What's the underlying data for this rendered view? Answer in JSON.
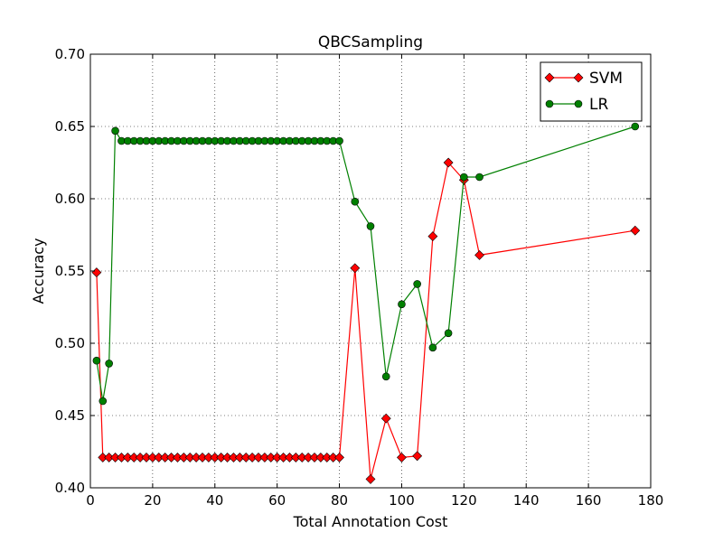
{
  "chart_data": {
    "type": "line",
    "title": "QBCSampling",
    "xlabel": "Total Annotation Cost",
    "ylabel": "Accuracy",
    "xlim": [
      0,
      180
    ],
    "ylim": [
      0.4,
      0.7
    ],
    "x_ticks": [
      0,
      20,
      40,
      60,
      80,
      100,
      120,
      140,
      160,
      180
    ],
    "y_ticks": [
      0.4,
      0.45,
      0.5,
      0.55,
      0.6,
      0.65,
      0.7
    ],
    "x_tick_labels": [
      "0",
      "20",
      "40",
      "60",
      "80",
      "100",
      "120",
      "140",
      "160",
      "180"
    ],
    "y_tick_labels": [
      "0.40",
      "0.45",
      "0.50",
      "0.55",
      "0.60",
      "0.65",
      "0.70"
    ],
    "grid": true,
    "legend_position": "top-right",
    "series": [
      {
        "name": "SVM",
        "color": "#ff0000",
        "marker": "diamond",
        "x": [
          2,
          4,
          6,
          8,
          10,
          12,
          14,
          16,
          18,
          20,
          22,
          24,
          26,
          28,
          30,
          32,
          34,
          36,
          38,
          40,
          42,
          44,
          46,
          48,
          50,
          52,
          54,
          56,
          58,
          60,
          62,
          64,
          66,
          68,
          70,
          72,
          74,
          76,
          78,
          80,
          85,
          90,
          95,
          100,
          105,
          110,
          115,
          120,
          125,
          175
        ],
        "y": [
          0.549,
          0.421,
          0.421,
          0.421,
          0.421,
          0.421,
          0.421,
          0.421,
          0.421,
          0.421,
          0.421,
          0.421,
          0.421,
          0.421,
          0.421,
          0.421,
          0.421,
          0.421,
          0.421,
          0.421,
          0.421,
          0.421,
          0.421,
          0.421,
          0.421,
          0.421,
          0.421,
          0.421,
          0.421,
          0.421,
          0.421,
          0.421,
          0.421,
          0.421,
          0.421,
          0.421,
          0.421,
          0.421,
          0.421,
          0.421,
          0.552,
          0.406,
          0.448,
          0.421,
          0.422,
          0.574,
          0.625,
          0.613,
          0.561,
          0.578
        ]
      },
      {
        "name": "LR",
        "color": "#008000",
        "marker": "circle",
        "x": [
          2,
          4,
          6,
          8,
          10,
          12,
          14,
          16,
          18,
          20,
          22,
          24,
          26,
          28,
          30,
          32,
          34,
          36,
          38,
          40,
          42,
          44,
          46,
          48,
          50,
          52,
          54,
          56,
          58,
          60,
          62,
          64,
          66,
          68,
          70,
          72,
          74,
          76,
          78,
          80,
          85,
          90,
          95,
          100,
          105,
          110,
          115,
          120,
          125,
          175
        ],
        "y": [
          0.488,
          0.46,
          0.486,
          0.647,
          0.64,
          0.64,
          0.64,
          0.64,
          0.64,
          0.64,
          0.64,
          0.64,
          0.64,
          0.64,
          0.64,
          0.64,
          0.64,
          0.64,
          0.64,
          0.64,
          0.64,
          0.64,
          0.64,
          0.64,
          0.64,
          0.64,
          0.64,
          0.64,
          0.64,
          0.64,
          0.64,
          0.64,
          0.64,
          0.64,
          0.64,
          0.64,
          0.64,
          0.64,
          0.64,
          0.64,
          0.598,
          0.581,
          0.477,
          0.527,
          0.541,
          0.497,
          0.507,
          0.615,
          0.615,
          0.65
        ]
      }
    ]
  }
}
